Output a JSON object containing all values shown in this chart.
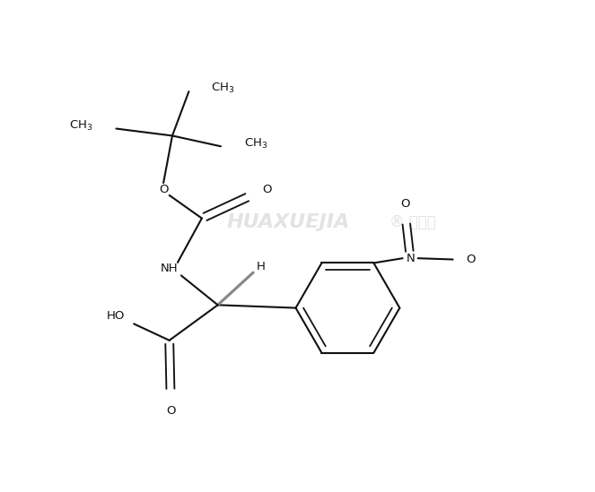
{
  "bg_color": "#ffffff",
  "line_color": "#111111",
  "text_color": "#111111",
  "figsize": [
    6.63,
    5.49
  ],
  "dpi": 100,
  "lw": 1.5,
  "fs": 9.5,
  "xlim": [
    0,
    10
  ],
  "ylim": [
    0,
    8.3
  ]
}
